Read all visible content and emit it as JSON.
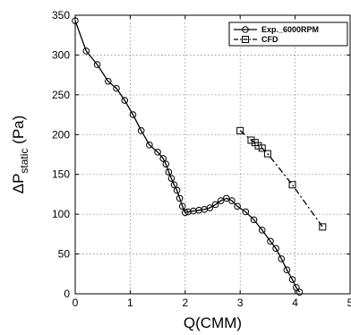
{
  "chart_data": {
    "type": "line",
    "xlabel": "Q(CMM)",
    "ylabel": {
      "main": "ΔP",
      "sub": "static",
      "unit": " (Pa)"
    },
    "xlim": [
      0,
      5
    ],
    "ylim": [
      0,
      350
    ],
    "xticks": [
      "0",
      "1",
      "2",
      "3",
      "4",
      "5"
    ],
    "yticks": [
      "0",
      "50",
      "100",
      "150",
      "200",
      "250",
      "300",
      "350"
    ],
    "grid": true,
    "legend_position": "top-right",
    "series": [
      {
        "name": "Exp._6000RPM",
        "style": "solid",
        "marker": "circle",
        "x": [
          0.0,
          0.2,
          0.4,
          0.6,
          0.75,
          0.9,
          1.05,
          1.2,
          1.35,
          1.5,
          1.6,
          1.65,
          1.7,
          1.75,
          1.8,
          1.85,
          1.9,
          1.95,
          2.0,
          2.05,
          2.15,
          2.25,
          2.35,
          2.45,
          2.55,
          2.65,
          2.75,
          2.85,
          2.95,
          3.1,
          3.25,
          3.4,
          3.55,
          3.65,
          3.75,
          3.85,
          3.95,
          4.02,
          4.08
        ],
        "y": [
          343,
          305,
          288,
          267,
          258,
          243,
          225,
          205,
          187,
          178,
          170,
          163,
          153,
          145,
          137,
          130,
          120,
          110,
          102,
          103,
          104,
          105,
          106,
          108,
          112,
          117,
          120,
          117,
          110,
          103,
          93,
          80,
          66,
          57,
          44,
          30,
          18,
          8,
          2
        ]
      },
      {
        "name": "CFD",
        "style": "dashdot",
        "marker": "square",
        "x": [
          3.0,
          3.2,
          3.27,
          3.33,
          3.4,
          3.5,
          3.95,
          4.5
        ],
        "y": [
          205,
          193,
          190,
          186,
          183,
          176,
          137,
          84
        ]
      }
    ]
  }
}
